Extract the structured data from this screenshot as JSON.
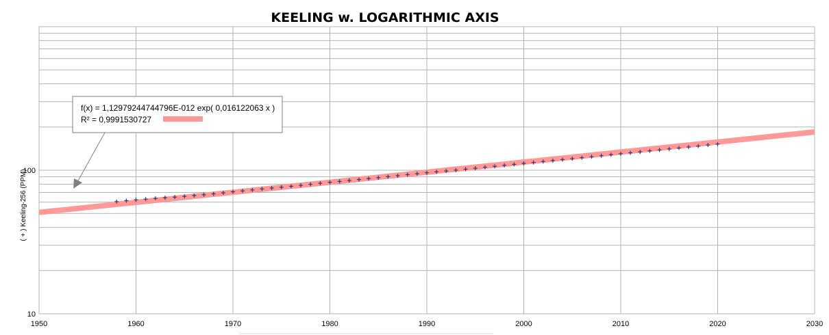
{
  "chart_data": {
    "type": "scatter",
    "title": "KEELING w. LOGARITHMIC AXIS",
    "ylabel": "( + ) Keeling-256 (PPM)",
    "xlabel": "",
    "x_scale": "linear",
    "y_scale": "log",
    "xlim": [
      1950,
      2030
    ],
    "ylim": [
      10,
      1000
    ],
    "x_ticks": [
      1950,
      1960,
      1970,
      1980,
      1990,
      2000,
      2010,
      2020,
      2030
    ],
    "y_tick_labels": [
      "10",
      "100"
    ],
    "grid": true,
    "series": [
      {
        "marker": "+",
        "color": "#2b3a67",
        "x": [
          1958,
          1959,
          1960,
          1961,
          1962,
          1963,
          1964,
          1965,
          1966,
          1967,
          1968,
          1969,
          1970,
          1971,
          1972,
          1973,
          1974,
          1975,
          1976,
          1977,
          1978,
          1979,
          1980,
          1981,
          1982,
          1983,
          1984,
          1985,
          1986,
          1987,
          1988,
          1989,
          1990,
          1991,
          1992,
          1993,
          1994,
          1995,
          1996,
          1997,
          1998,
          1999,
          2000,
          2001,
          2002,
          2003,
          2004,
          2005,
          2006,
          2007,
          2008,
          2009,
          2010,
          2011,
          2012,
          2013,
          2014,
          2015,
          2016,
          2017,
          2018,
          2019,
          2020
        ],
        "y": [
          60.5,
          61.4,
          62.2,
          62.9,
          63.7,
          64.4,
          65.0,
          65.8,
          66.7,
          67.5,
          68.5,
          69.6,
          70.8,
          71.8,
          72.9,
          74.1,
          75.2,
          76.2,
          77.3,
          78.5,
          79.8,
          81.1,
          82.4,
          83.6,
          84.8,
          86.1,
          87.4,
          88.8,
          90.2,
          91.6,
          93.2,
          94.6,
          96.0,
          97.4,
          98.8,
          100.2,
          101.7,
          103.3,
          104.9,
          106.5,
          108.2,
          109.9,
          111.6,
          113.3,
          115.0,
          116.8,
          118.6,
          120.4,
          122.3,
          124.2,
          126.2,
          128.2,
          130.2,
          132.2,
          134.3,
          136.4,
          138.5,
          140.7,
          142.9,
          145.1,
          147.4,
          149.8,
          152.2
        ]
      }
    ],
    "trendline": {
      "type": "exponential",
      "a": 1.12979244744796e-12,
      "b": 0.016122063,
      "color": "#ff9999",
      "equation_label": "f(x) = 1,12979244744796E-012 exp( 0,016122063 x )",
      "r2_label": "R² = 0,9991530727"
    }
  },
  "colors": {
    "grid": "#b3b3b3",
    "axis": "#b3b3b3",
    "marker": "#2b3a67",
    "trend": "#ff9999",
    "label_border": "#7f7f7f"
  }
}
